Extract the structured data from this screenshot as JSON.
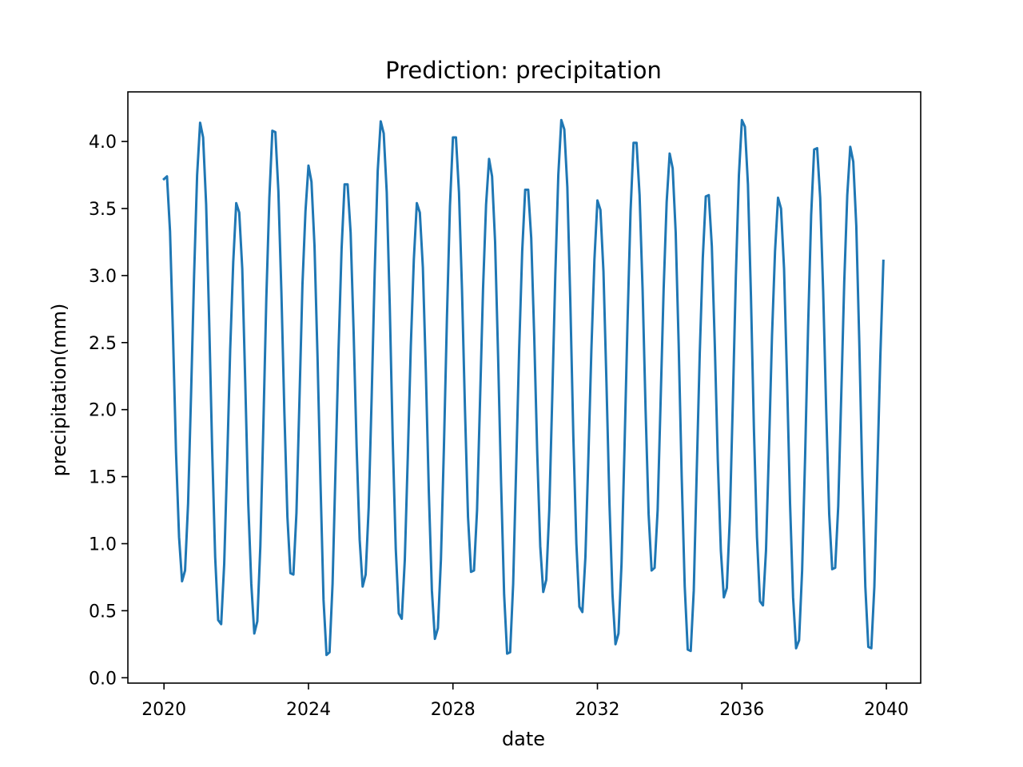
{
  "chart_data": {
    "type": "line",
    "title": "Prediction: precipitation",
    "xlabel": "date",
    "ylabel": "precipitation(mm)",
    "xlim": [
      2019.0,
      2040.95
    ],
    "ylim": [
      -0.04,
      4.37
    ],
    "x_ticks": [
      2020,
      2024,
      2028,
      2032,
      2036,
      2040
    ],
    "y_ticks": [
      0.0,
      0.5,
      1.0,
      1.5,
      2.0,
      2.5,
      3.0,
      3.5,
      4.0
    ],
    "grid": false,
    "line_color": "#1f77b4",
    "series": [
      {
        "x": [
          2020.0,
          2020.083,
          2020.167,
          2020.25,
          2020.333,
          2020.417,
          2020.5,
          2020.583,
          2020.667,
          2020.75,
          2020.833,
          2020.917,
          2021.0,
          2021.083,
          2021.167,
          2021.25,
          2021.333,
          2021.417,
          2021.5,
          2021.583,
          2021.667,
          2021.75,
          2021.833,
          2021.917,
          2022.0,
          2022.083,
          2022.167,
          2022.25,
          2022.333,
          2022.417,
          2022.5,
          2022.583,
          2022.667,
          2022.75,
          2022.833,
          2022.917,
          2023.0,
          2023.083,
          2023.167,
          2023.25,
          2023.333,
          2023.417,
          2023.5,
          2023.583,
          2023.667,
          2023.75,
          2023.833,
          2023.917,
          2024.0,
          2024.083,
          2024.167,
          2024.25,
          2024.333,
          2024.417,
          2024.5,
          2024.583,
          2024.667,
          2024.75,
          2024.833,
          2024.917,
          2025.0,
          2025.083,
          2025.167,
          2025.25,
          2025.333,
          2025.417,
          2025.5,
          2025.583,
          2025.667,
          2025.75,
          2025.833,
          2025.917,
          2026.0,
          2026.083,
          2026.167,
          2026.25,
          2026.333,
          2026.417,
          2026.5,
          2026.583,
          2026.667,
          2026.75,
          2026.833,
          2026.917,
          2027.0,
          2027.083,
          2027.167,
          2027.25,
          2027.333,
          2027.417,
          2027.5,
          2027.583,
          2027.667,
          2027.75,
          2027.833,
          2027.917,
          2028.0,
          2028.083,
          2028.167,
          2028.25,
          2028.333,
          2028.417,
          2028.5,
          2028.583,
          2028.667,
          2028.75,
          2028.833,
          2028.917,
          2029.0,
          2029.083,
          2029.167,
          2029.25,
          2029.333,
          2029.417,
          2029.5,
          2029.583,
          2029.667,
          2029.75,
          2029.833,
          2029.917,
          2030.0,
          2030.083,
          2030.167,
          2030.25,
          2030.333,
          2030.417,
          2030.5,
          2030.583,
          2030.667,
          2030.75,
          2030.833,
          2030.917,
          2031.0,
          2031.083,
          2031.167,
          2031.25,
          2031.333,
          2031.417,
          2031.5,
          2031.583,
          2031.667,
          2031.75,
          2031.833,
          2031.917,
          2032.0,
          2032.083,
          2032.167,
          2032.25,
          2032.333,
          2032.417,
          2032.5,
          2032.583,
          2032.667,
          2032.75,
          2032.833,
          2032.917,
          2033.0,
          2033.083,
          2033.167,
          2033.25,
          2033.333,
          2033.417,
          2033.5,
          2033.583,
          2033.667,
          2033.75,
          2033.833,
          2033.917,
          2034.0,
          2034.083,
          2034.167,
          2034.25,
          2034.333,
          2034.417,
          2034.5,
          2034.583,
          2034.667,
          2034.75,
          2034.833,
          2034.917,
          2035.0,
          2035.083,
          2035.167,
          2035.25,
          2035.333,
          2035.417,
          2035.5,
          2035.583,
          2035.667,
          2035.75,
          2035.833,
          2035.917,
          2036.0,
          2036.083,
          2036.167,
          2036.25,
          2036.333,
          2036.417,
          2036.5,
          2036.583,
          2036.667,
          2036.75,
          2036.833,
          2036.917,
          2037.0,
          2037.083,
          2037.167,
          2037.25,
          2037.333,
          2037.417,
          2037.5,
          2037.583,
          2037.667,
          2037.75,
          2037.833,
          2037.917,
          2038.0,
          2038.083,
          2038.167,
          2038.25,
          2038.333,
          2038.417,
          2038.5,
          2038.583,
          2038.667,
          2038.75,
          2038.833,
          2038.917,
          2039.0,
          2039.083,
          2039.167,
          2039.25,
          2039.333,
          2039.417,
          2039.5,
          2039.583,
          2039.667,
          2039.75,
          2039.833,
          2039.917
        ],
        "y": [
          3.72,
          3.74,
          3.33,
          2.55,
          1.68,
          1.05,
          0.72,
          0.8,
          1.3,
          2.12,
          3.0,
          3.75,
          4.14,
          4.03,
          3.53,
          2.67,
          1.71,
          0.9,
          0.43,
          0.4,
          0.85,
          1.62,
          2.45,
          3.1,
          3.54,
          3.47,
          3.05,
          2.2,
          1.3,
          0.7,
          0.33,
          0.42,
          0.98,
          1.87,
          2.83,
          3.58,
          4.08,
          4.07,
          3.63,
          2.88,
          1.98,
          1.2,
          0.78,
          0.77,
          1.23,
          2.07,
          2.93,
          3.48,
          3.82,
          3.7,
          3.22,
          2.4,
          1.45,
          0.58,
          0.17,
          0.19,
          0.7,
          1.57,
          2.45,
          3.2,
          3.68,
          3.68,
          3.32,
          2.58,
          1.72,
          1.03,
          0.68,
          0.77,
          1.27,
          2.1,
          3.02,
          3.78,
          4.15,
          4.06,
          3.62,
          2.78,
          1.77,
          0.96,
          0.48,
          0.44,
          0.88,
          1.65,
          2.47,
          3.12,
          3.54,
          3.47,
          3.06,
          2.28,
          1.38,
          0.65,
          0.29,
          0.37,
          0.88,
          1.72,
          2.68,
          3.52,
          4.03,
          4.03,
          3.62,
          2.9,
          2.0,
          1.2,
          0.79,
          0.8,
          1.25,
          2.07,
          2.9,
          3.53,
          3.87,
          3.74,
          3.25,
          2.4,
          1.45,
          0.62,
          0.18,
          0.19,
          0.7,
          1.57,
          2.45,
          3.18,
          3.64,
          3.64,
          3.28,
          2.55,
          1.68,
          0.98,
          0.64,
          0.73,
          1.25,
          2.1,
          3.0,
          3.75,
          4.16,
          4.09,
          3.66,
          2.8,
          1.8,
          1.0,
          0.53,
          0.49,
          0.9,
          1.65,
          2.45,
          3.12,
          3.56,
          3.49,
          3.03,
          2.2,
          1.3,
          0.62,
          0.25,
          0.33,
          0.85,
          1.72,
          2.65,
          3.48,
          3.99,
          3.99,
          3.6,
          2.9,
          2.0,
          1.22,
          0.8,
          0.82,
          1.25,
          2.07,
          2.9,
          3.55,
          3.91,
          3.8,
          3.32,
          2.48,
          1.5,
          0.68,
          0.21,
          0.2,
          0.65,
          1.55,
          2.42,
          3.13,
          3.59,
          3.6,
          3.22,
          2.48,
          1.62,
          0.95,
          0.6,
          0.67,
          1.2,
          2.07,
          3.0,
          3.75,
          4.16,
          4.11,
          3.68,
          2.85,
          1.85,
          1.05,
          0.57,
          0.54,
          0.95,
          1.72,
          2.55,
          3.18,
          3.58,
          3.5,
          3.05,
          2.22,
          1.3,
          0.6,
          0.22,
          0.28,
          0.8,
          1.65,
          2.62,
          3.45,
          3.94,
          3.95,
          3.58,
          2.88,
          2.0,
          1.22,
          0.81,
          0.82,
          1.28,
          2.1,
          2.95,
          3.6,
          3.96,
          3.85,
          3.37,
          2.5,
          1.5,
          0.68,
          0.23,
          0.22,
          0.68,
          1.55,
          2.4,
          3.11
        ]
      }
    ]
  }
}
